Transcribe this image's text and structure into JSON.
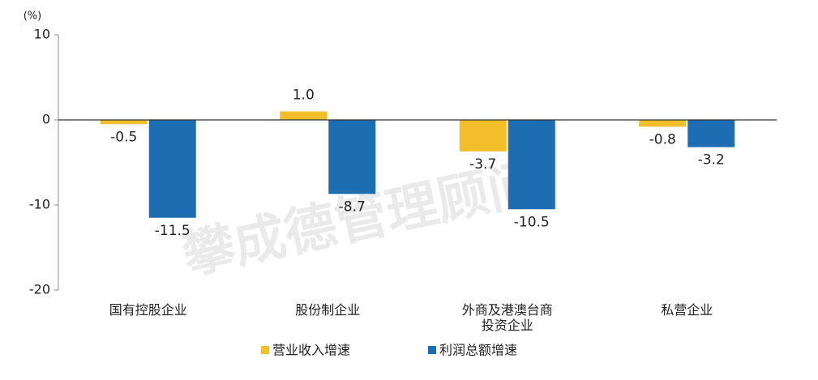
{
  "chart_data": {
    "type": "bar",
    "unit_label": "(%)",
    "watermark": "攀成德管理顾问",
    "categories": [
      "国有控股企业",
      "股份制企业",
      "外商及港澳台商投资企业",
      "私营企业"
    ],
    "series": [
      {
        "name": "营业收入增速",
        "color": "#f2bf2b",
        "values": [
          -0.5,
          1.0,
          -3.7,
          -0.8
        ],
        "value_labels": [
          "-0.5",
          "1.0",
          "-3.7",
          "-0.8"
        ]
      },
      {
        "name": "利润总额增速",
        "color": "#1d6db3",
        "values": [
          -11.5,
          -8.7,
          -10.5,
          -3.2
        ],
        "value_labels": [
          "-11.5",
          "-8.7",
          "-10.5",
          "-3.2"
        ]
      }
    ],
    "ylim": [
      -20,
      10
    ],
    "yticks": [
      -20,
      -10,
      0,
      10
    ]
  }
}
